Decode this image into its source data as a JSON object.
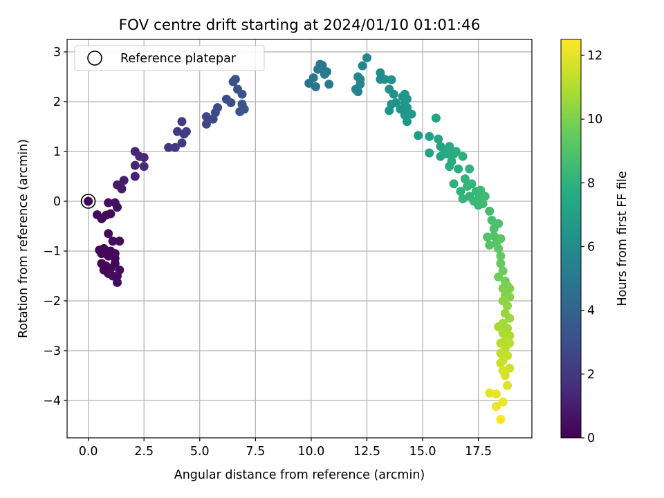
{
  "chart_data": {
    "type": "scatter",
    "title": "FOV centre drift starting at 2024/01/10 01:01:46",
    "xlabel": "Angular distance from reference (arcmin)",
    "ylabel": "Rotation from reference (arcmin)",
    "xlim": [
      -0.95,
      19.9
    ],
    "ylim": [
      -4.75,
      3.25
    ],
    "xticks": [
      0.0,
      2.5,
      5.0,
      7.5,
      10.0,
      12.5,
      15.0,
      17.5
    ],
    "xtick_labels": [
      "0.0",
      "2.5",
      "5.0",
      "7.5",
      "10.0",
      "12.5",
      "15.0",
      "17.5"
    ],
    "yticks": [
      -4,
      -3,
      -2,
      -1,
      0,
      1,
      2,
      3
    ],
    "ytick_labels": [
      "−4",
      "−3",
      "−2",
      "−1",
      "0",
      "1",
      "2",
      "3"
    ],
    "grid": true,
    "legend": {
      "position": "top-left",
      "entries": [
        "Reference platepar"
      ]
    },
    "colorbar": {
      "label": "Hours from first FF file",
      "range": [
        0,
        12.5
      ],
      "ticks": [
        0,
        2,
        4,
        6,
        8,
        10,
        12
      ],
      "tick_labels": [
        "0",
        "2",
        "4",
        "6",
        "8",
        "10",
        "12"
      ],
      "colormap": "viridis"
    },
    "reference_point": {
      "x": 0.0,
      "y": 0.0
    },
    "series": [
      {
        "points": [
          [
            0.0,
            0.0,
            0.1
          ],
          [
            0.4,
            -0.27,
            0.2
          ],
          [
            0.6,
            -0.35,
            0.3
          ],
          [
            0.8,
            -0.28,
            0.4
          ],
          [
            1.0,
            -0.25,
            0.3
          ],
          [
            0.9,
            -0.03,
            0.5
          ],
          [
            1.2,
            -0.03,
            0.6
          ],
          [
            1.3,
            -0.12,
            0.5
          ],
          [
            0.9,
            -0.65,
            0.3
          ],
          [
            1.1,
            -0.8,
            0.4
          ],
          [
            1.4,
            -0.8,
            0.4
          ],
          [
            0.5,
            -0.98,
            0.2
          ],
          [
            0.7,
            -0.95,
            0.2
          ],
          [
            0.6,
            -1.05,
            0.2
          ],
          [
            0.9,
            -1.1,
            0.3
          ],
          [
            1.0,
            -1.0,
            0.3
          ],
          [
            1.2,
            -1.05,
            0.3
          ],
          [
            0.6,
            -1.25,
            0.2
          ],
          [
            0.8,
            -1.3,
            0.3
          ],
          [
            0.7,
            -1.38,
            0.2
          ],
          [
            1.0,
            -1.35,
            0.3
          ],
          [
            1.2,
            -1.25,
            0.3
          ],
          [
            1.4,
            -1.38,
            0.4
          ],
          [
            0.9,
            -1.45,
            0.3
          ],
          [
            1.1,
            -1.5,
            0.4
          ],
          [
            1.3,
            -1.5,
            0.4
          ],
          [
            1.3,
            -1.63,
            0.4
          ],
          [
            1.2,
            -1.15,
            0.3
          ],
          [
            1.5,
            0.25,
            0.9
          ],
          [
            1.3,
            0.33,
            0.9
          ],
          [
            1.6,
            0.42,
            1.0
          ],
          [
            2.1,
            0.5,
            1.2
          ],
          [
            2.1,
            0.72,
            1.3
          ],
          [
            2.5,
            0.7,
            1.4
          ],
          [
            2.1,
            1.0,
            1.3
          ],
          [
            2.5,
            0.88,
            1.4
          ],
          [
            2.3,
            0.9,
            1.4
          ],
          [
            3.6,
            1.08,
            2.0
          ],
          [
            3.9,
            1.08,
            2.1
          ],
          [
            4.2,
            1.17,
            2.2
          ],
          [
            4.0,
            1.4,
            2.1
          ],
          [
            4.3,
            1.35,
            2.2
          ],
          [
            4.2,
            1.6,
            2.2
          ],
          [
            4.4,
            1.4,
            2.3
          ],
          [
            5.3,
            1.55,
            2.6
          ],
          [
            5.3,
            1.7,
            2.6
          ],
          [
            5.6,
            1.65,
            2.7
          ],
          [
            5.7,
            1.78,
            2.8
          ],
          [
            5.8,
            1.88,
            2.8
          ],
          [
            6.2,
            2.05,
            3.0
          ],
          [
            6.4,
            1.98,
            3.0
          ],
          [
            6.5,
            2.4,
            3.1
          ],
          [
            6.6,
            2.45,
            3.2
          ],
          [
            6.7,
            2.25,
            3.2
          ],
          [
            6.9,
            2.15,
            3.3
          ],
          [
            6.8,
            1.8,
            3.3
          ],
          [
            7.0,
            1.85,
            3.4
          ],
          [
            6.9,
            1.95,
            3.3
          ],
          [
            9.9,
            2.37,
            4.8
          ],
          [
            10.2,
            2.3,
            4.9
          ],
          [
            10.1,
            2.48,
            4.9
          ],
          [
            10.3,
            2.65,
            5.0
          ],
          [
            10.4,
            2.75,
            5.0
          ],
          [
            10.5,
            2.73,
            5.0
          ],
          [
            10.6,
            2.55,
            5.1
          ],
          [
            10.8,
            2.35,
            5.1
          ],
          [
            10.7,
            2.6,
            5.1
          ],
          [
            12.0,
            2.25,
            5.6
          ],
          [
            12.1,
            2.2,
            5.6
          ],
          [
            12.2,
            2.35,
            5.7
          ],
          [
            12.1,
            2.5,
            5.7
          ],
          [
            12.2,
            2.45,
            5.7
          ],
          [
            12.3,
            2.72,
            5.8
          ],
          [
            12.5,
            2.88,
            5.8
          ],
          [
            13.1,
            2.58,
            6.1
          ],
          [
            13.1,
            2.45,
            6.1
          ],
          [
            13.3,
            2.45,
            6.2
          ],
          [
            13.5,
            2.25,
            6.3
          ],
          [
            13.6,
            2.44,
            6.3
          ],
          [
            13.7,
            2.15,
            6.3
          ],
          [
            13.6,
            1.95,
            6.4
          ],
          [
            13.8,
            1.98,
            6.4
          ],
          [
            13.5,
            1.82,
            6.4
          ],
          [
            14.1,
            2.1,
            6.5
          ],
          [
            14.0,
            1.85,
            6.5
          ],
          [
            14.2,
            1.98,
            6.5
          ],
          [
            14.3,
            1.88,
            6.6
          ],
          [
            14.2,
            1.73,
            6.6
          ],
          [
            14.3,
            1.6,
            6.6
          ],
          [
            14.5,
            1.75,
            6.7
          ],
          [
            14.3,
            2.05,
            6.6
          ],
          [
            14.2,
            2.15,
            6.6
          ],
          [
            14.8,
            1.32,
            6.9
          ],
          [
            15.3,
            1.3,
            7.1
          ],
          [
            15.6,
            1.67,
            7.2
          ],
          [
            15.7,
            1.25,
            7.3
          ],
          [
            15.3,
            0.97,
            7.3
          ],
          [
            15.8,
            1.1,
            7.3
          ],
          [
            15.8,
            0.9,
            7.4
          ],
          [
            16.0,
            1.0,
            7.5
          ],
          [
            16.2,
            1.1,
            7.5
          ],
          [
            16.1,
            0.95,
            7.6
          ],
          [
            16.3,
            0.8,
            7.6
          ],
          [
            16.4,
            0.95,
            7.7
          ],
          [
            16.5,
            1.0,
            7.7
          ],
          [
            16.2,
            0.7,
            7.7
          ],
          [
            16.6,
            0.65,
            7.8
          ],
          [
            16.4,
            0.35,
            7.9
          ],
          [
            16.8,
            0.9,
            7.9
          ],
          [
            16.9,
            0.45,
            8.0
          ],
          [
            17.1,
            0.65,
            8.1
          ],
          [
            16.7,
            0.2,
            8.1
          ],
          [
            16.8,
            0.05,
            8.2
          ],
          [
            17.0,
            0.3,
            8.2
          ],
          [
            17.1,
            0.1,
            8.3
          ],
          [
            17.2,
            0.35,
            8.3
          ],
          [
            17.4,
            0.2,
            8.4
          ],
          [
            17.3,
            0.0,
            8.4
          ],
          [
            17.5,
            0.05,
            8.5
          ],
          [
            17.6,
            0.22,
            8.5
          ],
          [
            17.7,
            -0.05,
            8.6
          ],
          [
            17.8,
            0.1,
            8.6
          ],
          [
            17.5,
            -0.08,
            8.5
          ],
          [
            18.0,
            -0.2,
            8.7
          ],
          [
            18.1,
            -0.38,
            8.8
          ],
          [
            18.4,
            -0.45,
            8.9
          ],
          [
            18.2,
            -0.55,
            8.9
          ],
          [
            18.2,
            -0.7,
            9.0
          ],
          [
            18.3,
            -0.85,
            9.1
          ],
          [
            17.9,
            -0.72,
            9.0
          ],
          [
            18.0,
            -0.88,
            9.1
          ],
          [
            18.5,
            -0.75,
            9.2
          ],
          [
            18.4,
            -0.95,
            9.3
          ],
          [
            18.5,
            -1.1,
            9.4
          ],
          [
            18.5,
            -1.25,
            9.5
          ],
          [
            18.6,
            -1.4,
            9.6
          ],
          [
            18.4,
            -1.52,
            9.7
          ],
          [
            18.7,
            -1.6,
            9.8
          ],
          [
            18.8,
            -1.7,
            9.9
          ],
          [
            18.6,
            -1.75,
            10.0
          ],
          [
            18.9,
            -1.75,
            10.0
          ],
          [
            18.7,
            -1.9,
            10.1
          ],
          [
            18.9,
            -1.92,
            10.2
          ],
          [
            18.6,
            -2.0,
            10.3
          ],
          [
            18.8,
            -2.1,
            10.4
          ],
          [
            18.7,
            -2.25,
            10.5
          ],
          [
            18.9,
            -2.35,
            10.6
          ],
          [
            18.6,
            -2.45,
            10.7
          ],
          [
            18.8,
            -2.55,
            10.8
          ],
          [
            18.4,
            -2.52,
            10.8
          ],
          [
            18.6,
            -2.65,
            10.9
          ],
          [
            18.9,
            -2.7,
            11.0
          ],
          [
            18.5,
            -2.85,
            11.1
          ],
          [
            18.7,
            -2.8,
            11.1
          ],
          [
            18.9,
            -2.85,
            11.2
          ],
          [
            18.7,
            -2.95,
            11.2
          ],
          [
            18.5,
            -3.05,
            11.3
          ],
          [
            18.8,
            -3.1,
            11.4
          ],
          [
            18.6,
            -3.2,
            11.5
          ],
          [
            18.5,
            -3.25,
            11.5
          ],
          [
            18.9,
            -3.35,
            11.6
          ],
          [
            18.6,
            -3.4,
            11.7
          ],
          [
            18.7,
            -3.5,
            11.8
          ],
          [
            18.8,
            -3.7,
            11.9
          ],
          [
            18.0,
            -3.85,
            12.0
          ],
          [
            18.3,
            -3.87,
            12.1
          ],
          [
            18.6,
            -4.03,
            12.2
          ],
          [
            18.3,
            -4.12,
            12.2
          ],
          [
            18.5,
            -4.38,
            12.4
          ]
        ]
      }
    ]
  }
}
